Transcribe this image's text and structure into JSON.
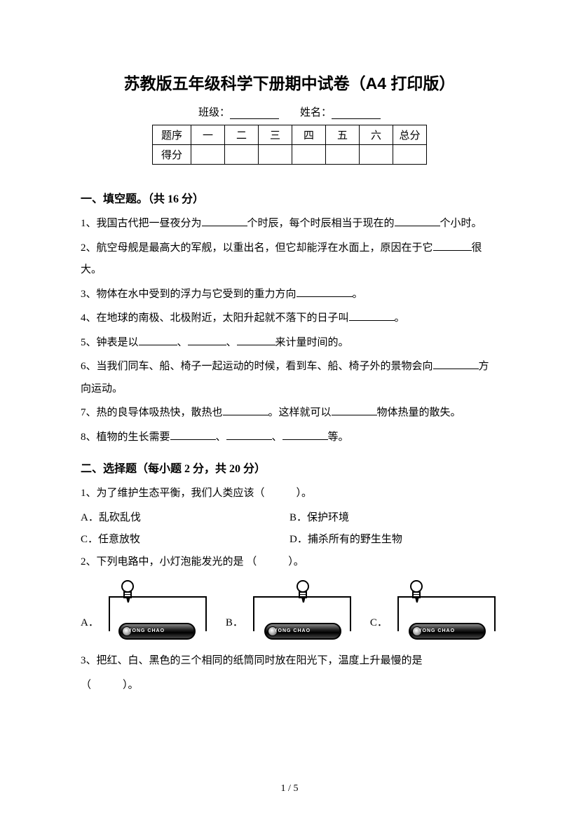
{
  "title": "苏教版五年级科学下册期中试卷（A4 打印版）",
  "info": {
    "class_label": "班级：",
    "name_label": "姓名："
  },
  "score_table": {
    "header_label": "题序",
    "score_label": "得分",
    "cols": [
      "一",
      "二",
      "三",
      "四",
      "五",
      "六",
      "总分"
    ]
  },
  "section1": {
    "heading": "一、填空题。（共 16 分）",
    "q1a": "1、我国古代把一昼夜分为",
    "q1b": "个时辰，每个时辰相当于现在的",
    "q1c": "个小时。",
    "q2a": "2、航空母舰是最高大的军舰，以重出名，但它却能浮在水面上，原因在于它",
    "q2b": "很大。",
    "q3a": "3、物体在水中受到的浮力与它受到的重力方向",
    "q3b": "。",
    "q4a": "4、在地球的南极、北极附近，太阳升起就不落下的日子叫",
    "q4b": "。",
    "q5a": "5、钟表是以",
    "q5b": "、",
    "q5c": "、",
    "q5d": "来计量时间的。",
    "q6a": "6、当我们同车、船、椅子一起运动的时候，看到车、船、椅子外的景物会向",
    "q6b": "方向运动。",
    "q7a": "7、热的良导体吸热快，散热也",
    "q7b": "。这样就可以",
    "q7c": "物体热量的散失。",
    "q8a": "8、植物的生长需要",
    "q8b": "、",
    "q8c": "、",
    "q8d": "等。"
  },
  "section2": {
    "heading": "二、选择题（每小题 2 分，共 20 分）",
    "q1": "1、为了维护生态平衡，我们人类应该（　　　）。",
    "q1_choices": {
      "a": "A．乱砍乱伐",
      "b": "B．保护环境",
      "c": "C．任意放牧",
      "d": "D．捕杀所有的野生生物"
    },
    "q2": "2、下列电路中，小灯泡能发光的是 （　　　）。",
    "q2_labels": {
      "a": "A．",
      "b": "B．",
      "c": "C．"
    },
    "battery_text": "YONG CHAO",
    "q3a": "3、把红、白、黑色的三个相同的纸筒同时放在阳光下，温度上升最慢的是",
    "q3b": "（　　　）。"
  },
  "page_num": "1 / 5"
}
